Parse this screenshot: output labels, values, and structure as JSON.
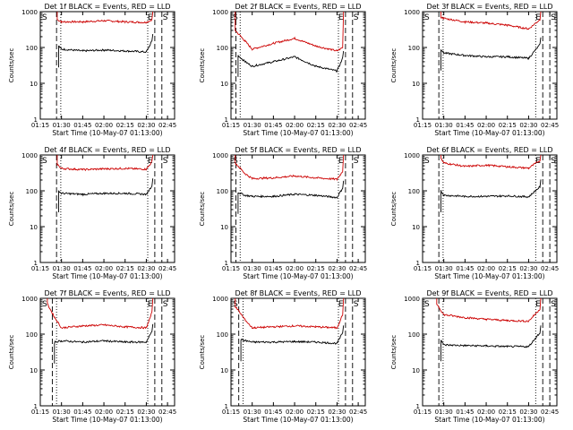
{
  "colors": {
    "background": "#ffffff",
    "events": "#000000",
    "lld": "#cc0000",
    "axes": "#000000"
  },
  "shared": {
    "xlabel": "Start Time (10-May-07 01:13:00)",
    "ylabel": "Counts/sec",
    "x_ticks": [
      "01:15",
      "01:30",
      "01:45",
      "02:00",
      "02:15",
      "02:30",
      "02:45"
    ],
    "y_ticks": [
      "1",
      "10",
      "100",
      "1000"
    ],
    "marker_S": "S",
    "marker_E": "E"
  },
  "chart_data": [
    {
      "type": "line",
      "title": "Det 1f BLACK = Events, RED = LLD",
      "x_scale": "time (minutes after 01:13:00)",
      "y_scale": "log",
      "ylim": [
        1,
        1000
      ],
      "markers": {
        "S_dashed_x": "01:27",
        "E_dotted_x": "01:28",
        "E_dotted_x2": "02:32",
        "E_dashed_x": "02:36",
        "S2_dashed_x": "02:42"
      },
      "series": [
        {
          "name": "LLD",
          "x": [
            "01:27",
            "01:30",
            "01:45",
            "02:00",
            "02:15",
            "02:30",
            "02:34"
          ],
          "values": [
            600,
            520,
            520,
            560,
            520,
            500,
            600
          ]
        },
        {
          "name": "Events",
          "x": [
            "01:28",
            "01:30",
            "01:45",
            "02:00",
            "02:15",
            "02:30",
            "02:34"
          ],
          "values": [
            110,
            90,
            80,
            85,
            80,
            75,
            150
          ]
        }
      ]
    },
    {
      "type": "line",
      "title": "Det 2f BLACK = Events, RED = LLD",
      "x_scale": "time (minutes after 01:13:00)",
      "y_scale": "log",
      "ylim": [
        1,
        1000
      ],
      "series": [
        {
          "name": "LLD",
          "x": [
            "01:18",
            "01:25",
            "01:30",
            "01:45",
            "02:00",
            "02:15",
            "02:30",
            "02:34"
          ],
          "values": [
            300,
            150,
            90,
            130,
            180,
            110,
            80,
            100
          ]
        },
        {
          "name": "Events",
          "x": [
            "01:20",
            "01:25",
            "01:30",
            "01:45",
            "02:00",
            "02:15",
            "02:30",
            "02:34"
          ],
          "values": [
            60,
            40,
            30,
            40,
            55,
            30,
            22,
            50
          ]
        }
      ]
    },
    {
      "type": "line",
      "title": "Det 3f BLACK = Events, RED = LLD",
      "x_scale": "time (minutes after 01:13:00)",
      "y_scale": "log",
      "ylim": [
        1,
        1000
      ],
      "series": [
        {
          "name": "LLD",
          "x": [
            "01:28",
            "01:30",
            "01:45",
            "02:00",
            "02:15",
            "02:30",
            "02:38"
          ],
          "values": [
            700,
            650,
            520,
            480,
            420,
            330,
            600
          ]
        },
        {
          "name": "Events",
          "x": [
            "01:28",
            "01:30",
            "01:45",
            "02:00",
            "02:15",
            "02:30",
            "02:38"
          ],
          "values": [
            90,
            70,
            60,
            55,
            55,
            50,
            120
          ]
        }
      ]
    },
    {
      "type": "line",
      "title": "Det 4f BLACK = Events, RED = LLD",
      "x_scale": "time (minutes after 01:13:00)",
      "y_scale": "log",
      "ylim": [
        1,
        1000
      ],
      "series": [
        {
          "name": "LLD",
          "x": [
            "01:27",
            "01:30",
            "01:45",
            "02:00",
            "02:15",
            "02:30",
            "02:34"
          ],
          "values": [
            550,
            420,
            390,
            410,
            420,
            400,
            650
          ]
        },
        {
          "name": "Events",
          "x": [
            "01:28",
            "01:30",
            "01:45",
            "02:00",
            "02:15",
            "02:30",
            "02:34"
          ],
          "values": [
            100,
            85,
            80,
            85,
            85,
            80,
            140
          ]
        }
      ]
    },
    {
      "type": "line",
      "title": "Det 5f BLACK = Events, RED = LLD",
      "x_scale": "time (minutes after 01:13:00)",
      "y_scale": "log",
      "ylim": [
        1,
        1000
      ],
      "series": [
        {
          "name": "LLD",
          "x": [
            "01:18",
            "01:25",
            "01:30",
            "01:45",
            "02:00",
            "02:15",
            "02:30",
            "02:34"
          ],
          "values": [
            600,
            300,
            220,
            230,
            260,
            230,
            210,
            350
          ]
        },
        {
          "name": "Events",
          "x": [
            "01:20",
            "01:25",
            "01:30",
            "01:45",
            "02:00",
            "02:15",
            "02:30",
            "02:34"
          ],
          "values": [
            90,
            75,
            70,
            70,
            80,
            75,
            65,
            120
          ]
        }
      ]
    },
    {
      "type": "line",
      "title": "Det 6f BLACK = Events, RED = LLD",
      "x_scale": "time (minutes after 01:13:00)",
      "y_scale": "log",
      "ylim": [
        1,
        1000
      ],
      "series": [
        {
          "name": "LLD",
          "x": [
            "01:28",
            "01:30",
            "01:45",
            "02:00",
            "02:15",
            "02:30",
            "02:38"
          ],
          "values": [
            800,
            600,
            480,
            520,
            470,
            430,
            700
          ]
        },
        {
          "name": "Events",
          "x": [
            "01:28",
            "01:30",
            "01:45",
            "02:00",
            "02:15",
            "02:30",
            "02:38"
          ],
          "values": [
            100,
            75,
            70,
            70,
            72,
            68,
            130
          ]
        }
      ]
    },
    {
      "type": "line",
      "title": "Det 7f BLACK = Events, RED = LLD",
      "x_scale": "time (minutes after 01:13:00)",
      "y_scale": "log",
      "ylim": [
        1,
        1000
      ],
      "series": [
        {
          "name": "LLD",
          "x": [
            "01:20",
            "01:25",
            "01:30",
            "01:45",
            "02:00",
            "02:15",
            "02:30",
            "02:34"
          ],
          "values": [
            700,
            300,
            150,
            170,
            180,
            160,
            150,
            400
          ]
        },
        {
          "name": "Events",
          "x": [
            "01:25",
            "01:30",
            "01:45",
            "02:00",
            "02:15",
            "02:30",
            "02:34"
          ],
          "values": [
            60,
            65,
            60,
            65,
            60,
            60,
            120
          ]
        }
      ]
    },
    {
      "type": "line",
      "title": "Det 8f BLACK = Events, RED = LLD",
      "x_scale": "time (minutes after 01:13:00)",
      "y_scale": "log",
      "ylim": [
        1,
        1000
      ],
      "series": [
        {
          "name": "LLD",
          "x": [
            "01:18",
            "01:25",
            "01:30",
            "01:45",
            "02:00",
            "02:15",
            "02:30",
            "02:34"
          ],
          "values": [
            600,
            250,
            150,
            160,
            170,
            160,
            150,
            350
          ]
        },
        {
          "name": "Events",
          "x": [
            "01:22",
            "01:30",
            "01:45",
            "02:00",
            "02:15",
            "02:30",
            "02:34"
          ],
          "values": [
            70,
            60,
            60,
            62,
            60,
            55,
            110
          ]
        }
      ]
    },
    {
      "type": "line",
      "title": "Det 9f BLACK = Events, RED = LLD",
      "x_scale": "time (minutes after 01:13:00)",
      "y_scale": "log",
      "ylim": [
        1,
        1000
      ],
      "series": [
        {
          "name": "LLD",
          "x": [
            "01:25",
            "01:30",
            "01:45",
            "02:00",
            "02:15",
            "02:30",
            "02:38"
          ],
          "values": [
            700,
            350,
            290,
            260,
            240,
            230,
            500
          ]
        },
        {
          "name": "Events",
          "x": [
            "01:28",
            "01:30",
            "01:45",
            "02:00",
            "02:15",
            "02:30",
            "02:38"
          ],
          "values": [
            70,
            50,
            48,
            47,
            45,
            45,
            110
          ]
        }
      ]
    }
  ]
}
